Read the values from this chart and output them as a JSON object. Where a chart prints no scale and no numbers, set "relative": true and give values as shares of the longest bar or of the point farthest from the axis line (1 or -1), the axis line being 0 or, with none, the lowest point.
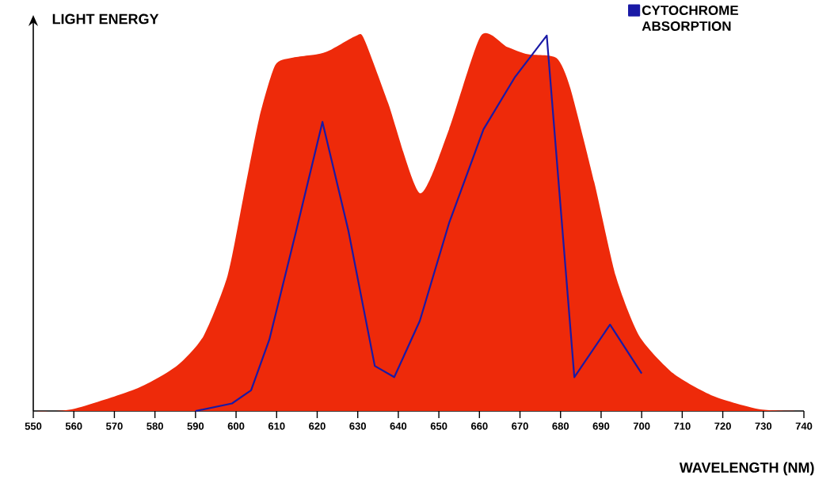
{
  "chart_data": {
    "type": "area",
    "ylabel": "LIGHT ENERGY",
    "xlabel": "WAVELENGTH (NM)",
    "xlim": [
      550,
      740
    ],
    "xticks": [
      550,
      560,
      570,
      580,
      590,
      600,
      610,
      620,
      630,
      640,
      650,
      660,
      670,
      680,
      690,
      700,
      710,
      720,
      730,
      740
    ],
    "relative": true,
    "legend": "top right",
    "series": [
      {
        "color": "#ee2a0a",
        "x": [
          550,
          559.4,
          575.6,
          585.4,
          592,
          597.9,
          601.8,
          605.7,
          609.6,
          613.5,
          620,
          623,
          629.7,
          631.6,
          637.5,
          645.3,
          652.5,
          660.4,
          666.8,
          672,
          679,
          682.4,
          688.3,
          693.6,
          699.4,
          707.8,
          717.6,
          729.3,
          740
        ],
        "values": [
          0,
          0.004,
          0.06,
          0.12,
          0.2,
          0.36,
          0.57,
          0.78,
          0.92,
          0.94,
          0.95,
          0.96,
          1.0,
          0.99,
          0.82,
          0.58,
          0.75,
          1.0,
          0.97,
          0.95,
          0.94,
          0.86,
          0.61,
          0.36,
          0.2,
          0.1,
          0.04,
          0.004,
          0
        ]
      },
      {
        "type": "line",
        "name": "CYTOCHROME ABSORPTION",
        "color": "#1a1aa6",
        "x": [
          590,
          599,
          603.7,
          608.2,
          614.6,
          621.3,
          627.7,
          634.2,
          639,
          645.3,
          652.5,
          661,
          668.8,
          676.6,
          683.4,
          692.2,
          700
        ],
        "values": [
          0,
          0.02,
          0.055,
          0.19,
          0.47,
          0.77,
          0.48,
          0.12,
          0.09,
          0.24,
          0.5,
          0.75,
          0.89,
          1.0,
          0.09,
          0.23,
          0.1
        ]
      }
    ]
  }
}
